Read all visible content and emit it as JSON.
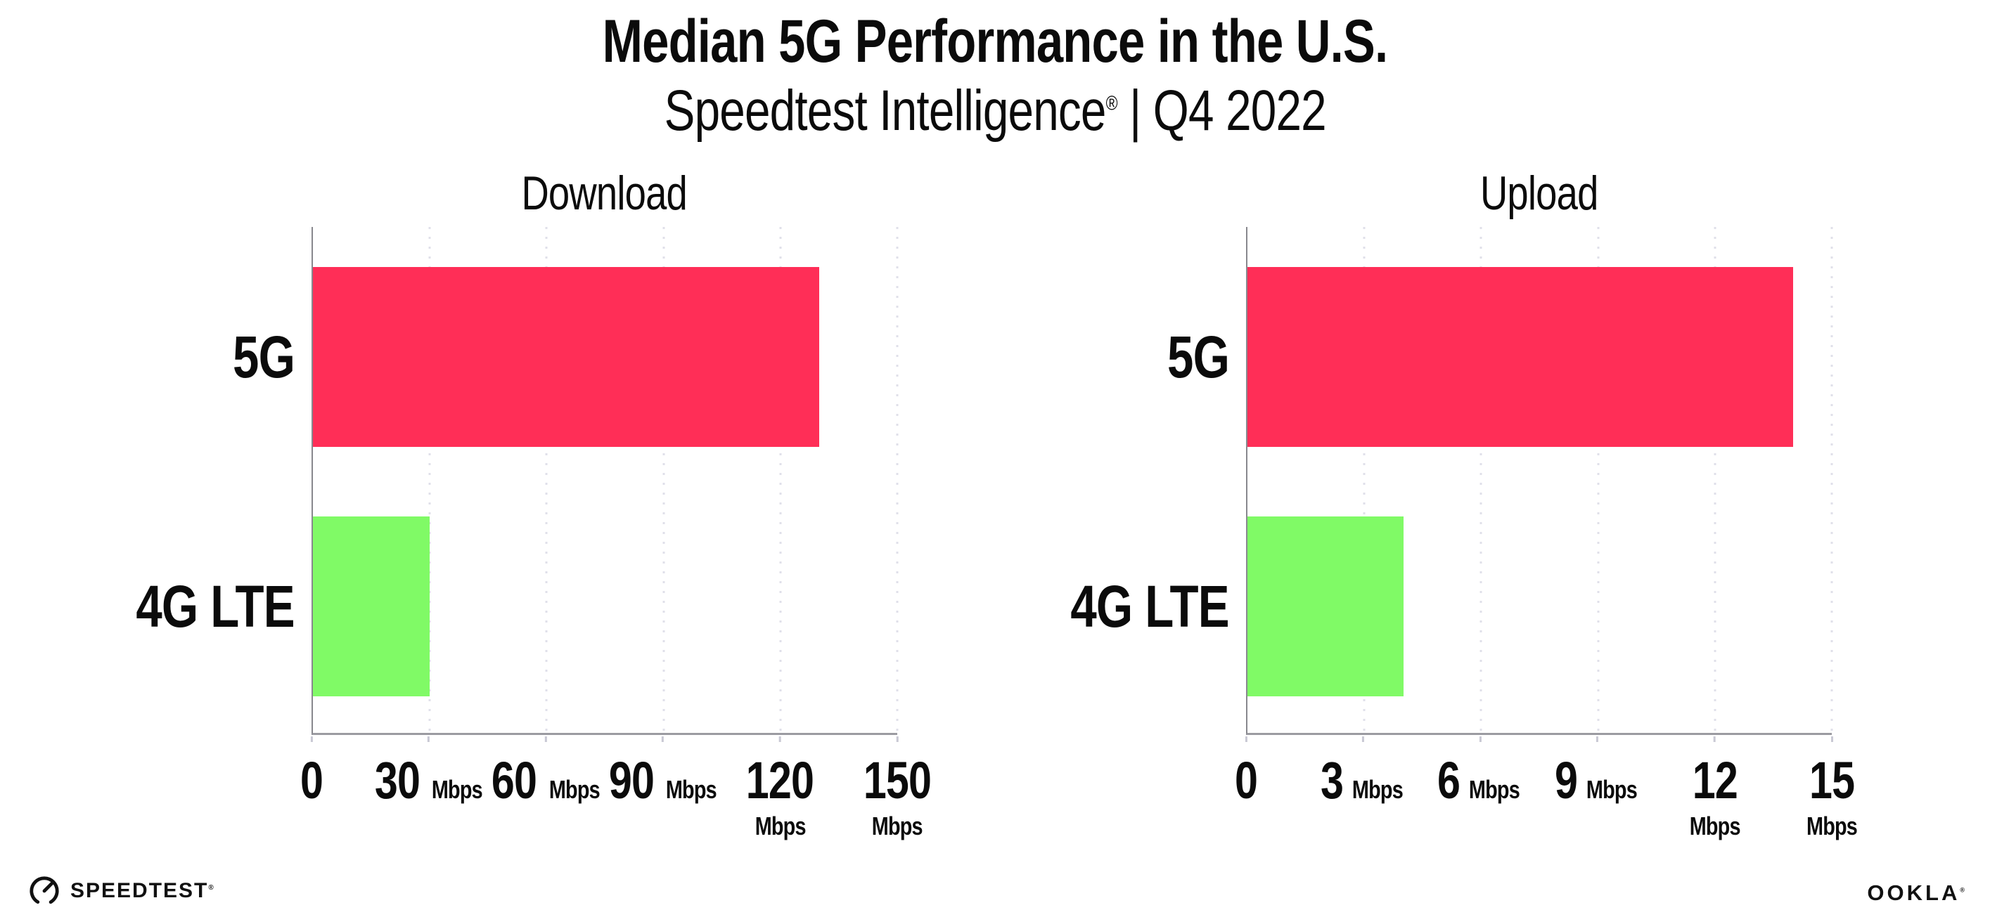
{
  "header": {
    "title": "Median 5G Performance in the U.S.",
    "subtitle_brand": "Speedtest Intelligence",
    "subtitle_reg": "®",
    "subtitle_rest": " | Q4 2022"
  },
  "chart_data": [
    {
      "type": "bar",
      "orientation": "horizontal",
      "title": "Download",
      "categories": [
        "5G",
        "4G LTE"
      ],
      "values": [
        130,
        30
      ],
      "unit": "Mbps",
      "xlim": [
        0,
        150
      ],
      "x_ticks": [
        0,
        30,
        60,
        90,
        120,
        150
      ],
      "tick_unit": "Mbps",
      "bar_colors": [
        "#FF2E57",
        "#80FA66"
      ],
      "grid": "dotted-vertical",
      "legend": "none"
    },
    {
      "type": "bar",
      "orientation": "horizontal",
      "title": "Upload",
      "categories": [
        "5G",
        "4G LTE"
      ],
      "values": [
        14,
        4
      ],
      "unit": "Mbps",
      "xlim": [
        0,
        15
      ],
      "x_ticks": [
        0,
        3,
        6,
        9,
        12,
        15
      ],
      "tick_unit": "Mbps",
      "bar_colors": [
        "#FF2E57",
        "#80FA66"
      ],
      "grid": "dotted-vertical",
      "legend": "none"
    }
  ],
  "footer": {
    "speedtest_label": "SPEEDTEST",
    "speedtest_mark": "®",
    "ookla_label": "OOKLA",
    "ookla_mark": "®"
  },
  "colors": {
    "bar_5g": "#FF2E57",
    "bar_4g_lte": "#80FA66",
    "gridline": "#E0E0EA",
    "axis_y": "#88888E",
    "axis_x": "#9B9BA1",
    "tickmark": "#C9C9D4",
    "text": "#0B0B0B",
    "background": "#FFFFFF"
  }
}
